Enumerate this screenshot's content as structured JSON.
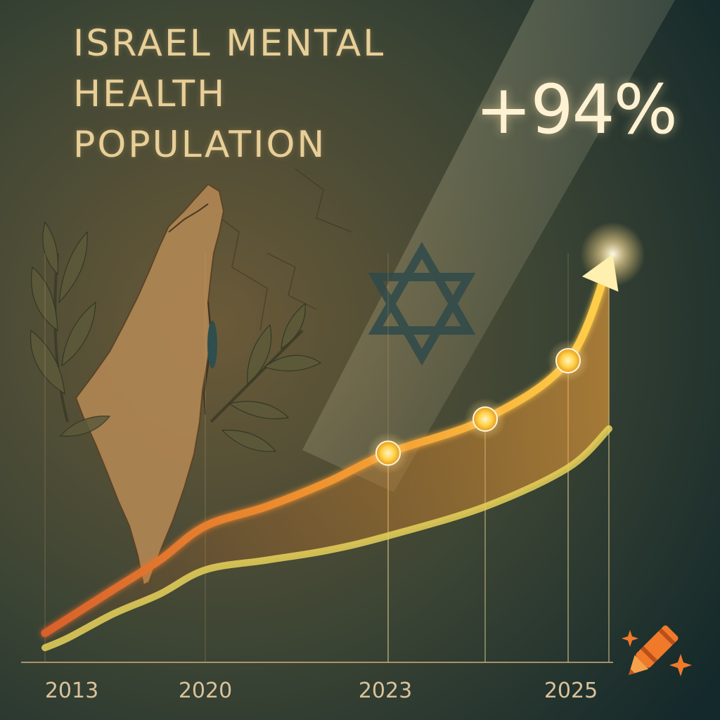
{
  "title": {
    "lines": [
      "ISRAEL MENTAL",
      "HEALTH",
      "POPULATION"
    ]
  },
  "badge": {
    "text": "+94%"
  },
  "colors": {
    "background_dark": "#142a2c",
    "background_warm": "#6b5a38",
    "title": "#e8cf98",
    "upper_line": "#ffb830",
    "upper_line_start": "#d8612c",
    "lower_line": "#e8d25a",
    "marker": "#ffd24a",
    "axis": "#c9a877",
    "icon_orange": "#f07a2a"
  },
  "decorations": [
    "israel-map-icon",
    "olive-branch-icon",
    "star-of-david-icon",
    "crayon-icon",
    "sparkle-icon"
  ],
  "chart_data": {
    "type": "line",
    "x_ticks": [
      2013,
      2020,
      2023,
      2025
    ],
    "xlabel": "",
    "ylabel": "",
    "xlim": [
      2013,
      2025.5
    ],
    "ylim": [
      0,
      100
    ],
    "grid": "vertical",
    "legend": "none",
    "series": [
      {
        "x": [
          2013,
          2014,
          2016,
          2018,
          2020,
          2021,
          2022,
          2023,
          2024,
          2025,
          2025.5
        ],
        "y": [
          6,
          9,
          15,
          21,
          28,
          32,
          37,
          43,
          50,
          62,
          82
        ],
        "markers_at": [
          2023,
          2024,
          2025
        ],
        "arrow_end": true
      },
      {
        "x": [
          2013,
          2014,
          2016,
          2018,
          2020,
          2021,
          2022,
          2023,
          2024,
          2025,
          2025.5
        ],
        "y": [
          3,
          5,
          10,
          14,
          19,
          21,
          23,
          26,
          32,
          40,
          48
        ],
        "markers_at": [],
        "arrow_end": false
      }
    ]
  }
}
